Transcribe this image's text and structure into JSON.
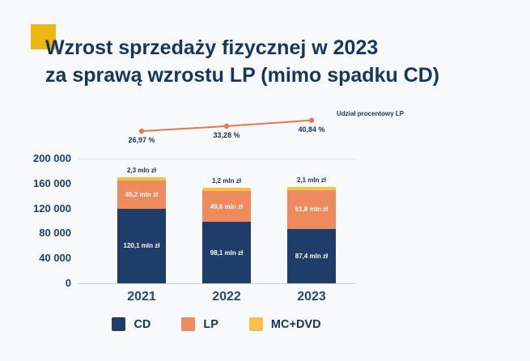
{
  "title": {
    "line1": "Wzrost sprzedaży fizycznej w 2023",
    "line2": "za sprawą wzrostu LP (mimo spadku CD)"
  },
  "colors": {
    "background": "#f8f9fb",
    "navy": "#1e3d6b",
    "orange": "#ee8b5e",
    "yellow": "#f4c14d",
    "accent_square": "#eeb711",
    "line": "#e4794f",
    "text_navy": "#16365f"
  },
  "chart_data": {
    "type": "bar",
    "stacked": true,
    "title": "Wzrost sprzedaży fizycznej w 2023 za sprawą wzrostu LP (mimo spadku CD)",
    "categories": [
      "2021",
      "2022",
      "2023"
    ],
    "series": [
      {
        "name": "CD",
        "color_key": "navy",
        "values": [
          120100,
          98100,
          87400
        ],
        "labels": [
          "120,1 mln zł",
          "98,1 mln zł",
          "87,4 mln zł"
        ]
      },
      {
        "name": "LP",
        "color_key": "orange",
        "values": [
          45200,
          49600,
          61800
        ],
        "labels": [
          "45,2 mln zł",
          "49,6 mln zł",
          "61,8 mln zł"
        ]
      },
      {
        "name": "MC+DVD",
        "color_key": "yellow",
        "values": [
          2300,
          1200,
          2100
        ],
        "labels": [
          "2,3 mln zł",
          "1,2 mln zł",
          "2,1 mln zł"
        ]
      }
    ],
    "line_series": {
      "name": "Udział procentowy LP",
      "values": [
        26.97,
        33.28,
        40.84
      ],
      "labels": [
        "26,97 %",
        "33,28 %",
        "40,84 %"
      ]
    },
    "y_ticks": [
      {
        "label": "200 000",
        "value": 200000
      },
      {
        "label": "160 000",
        "value": 160000
      },
      {
        "label": "120 000",
        "value": 120000
      },
      {
        "label": "80 000",
        "value": 80000
      },
      {
        "label": "40 000",
        "value": 40000
      },
      {
        "label": "0",
        "value": 0
      }
    ],
    "ylim": [
      0,
      200000
    ],
    "legend": [
      "CD",
      "LP",
      "MC+DVD"
    ],
    "legend_position": "bottom",
    "grid": "minimal"
  }
}
